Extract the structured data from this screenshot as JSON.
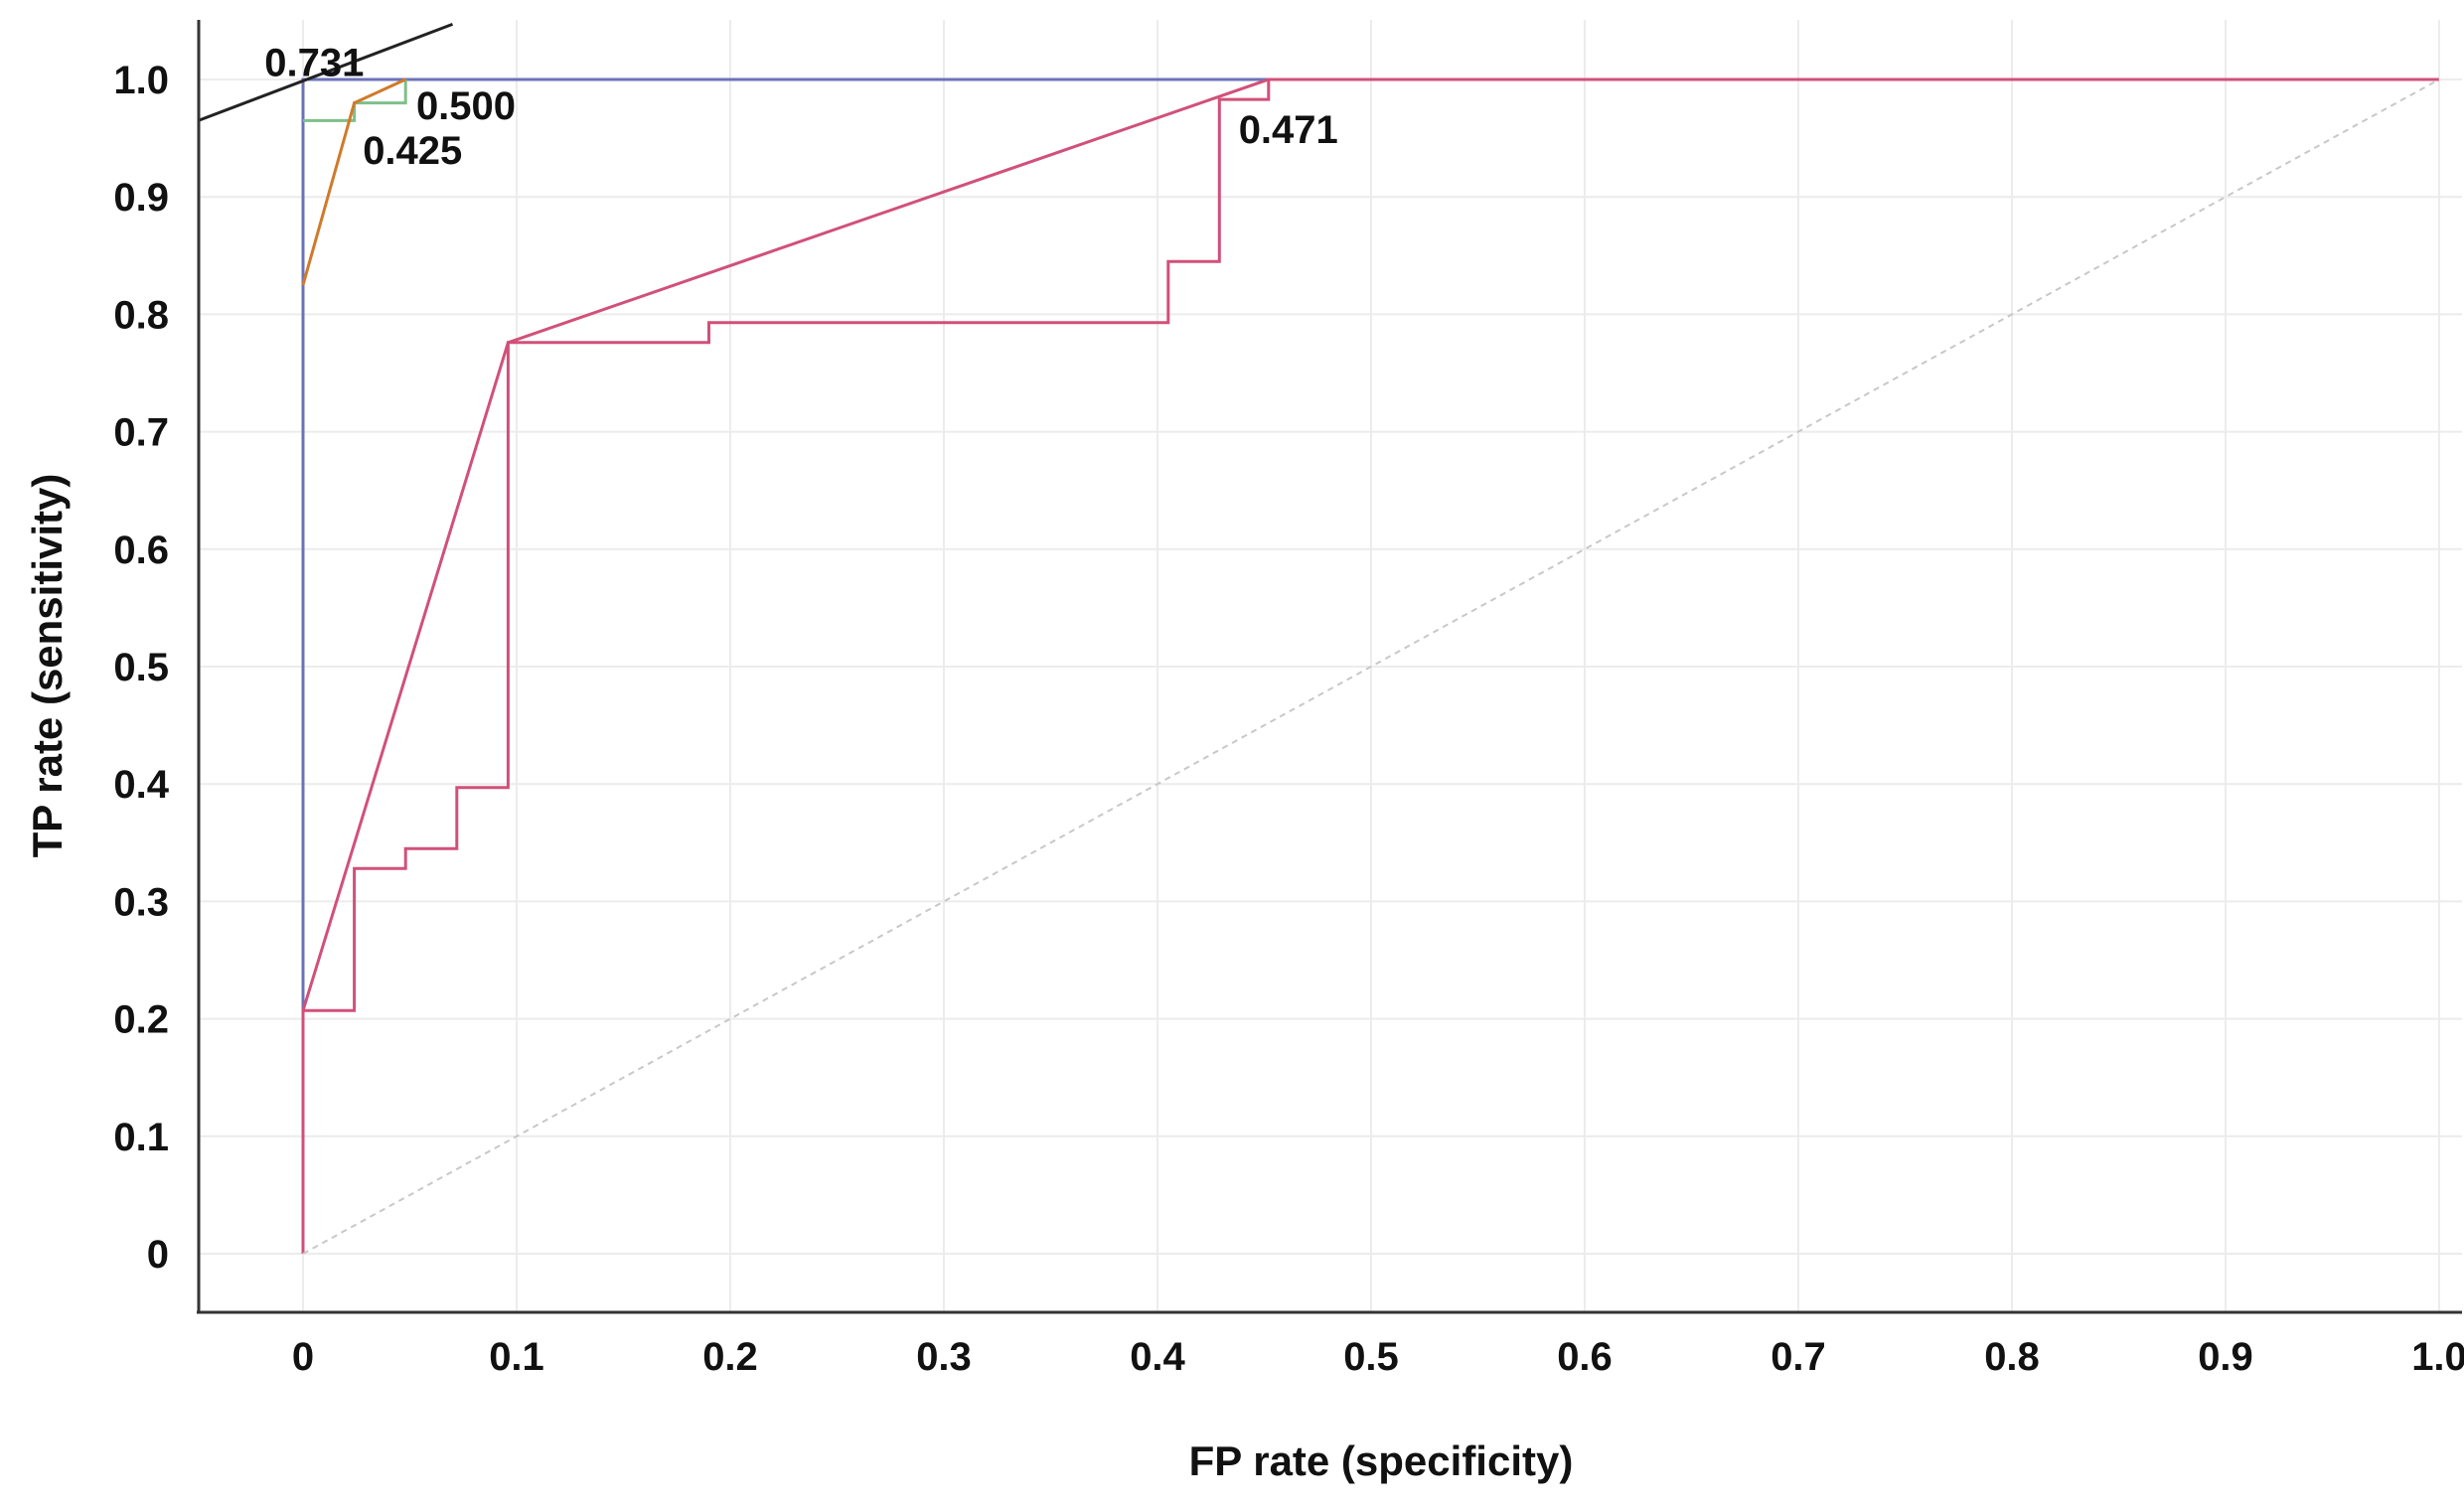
{
  "chart_data": {
    "type": "line",
    "xlabel": "FP rate (specificity)",
    "ylabel": "TP rate (sensitivity)",
    "xlim": [
      -0.05,
      1.01
    ],
    "ylim": [
      -0.05,
      1.05
    ],
    "xticks": [
      0,
      0.1,
      0.2,
      0.3,
      0.4,
      0.5,
      0.6,
      0.7,
      0.8,
      0.9,
      1.0
    ],
    "xtick_labels": [
      "0",
      "0.1",
      "0.2",
      "0.3",
      "0.4",
      "0.5",
      "0.6",
      "0.7",
      "0.8",
      "0.9",
      "1.0"
    ],
    "yticks": [
      0,
      0.1,
      0.2,
      0.3,
      0.4,
      0.5,
      0.6,
      0.7,
      0.8,
      0.9,
      1.0
    ],
    "ytick_labels": [
      "0",
      "0.1",
      "0.2",
      "0.3",
      "0.4",
      "0.5",
      "0.6",
      "0.7",
      "0.8",
      "0.9",
      "1.0"
    ],
    "grid": true,
    "series": [
      {
        "color": "#6b73b8",
        "points": [
          [
            0,
            0
          ],
          [
            0,
            1.0
          ],
          [
            1.0,
            1.0
          ]
        ]
      },
      {
        "color": "#7fbf8a",
        "points": [
          [
            0,
            0.965
          ],
          [
            0.024,
            0.965
          ],
          [
            0.024,
            0.98
          ],
          [
            0.048,
            0.98
          ],
          [
            0.048,
            1.0
          ]
        ]
      },
      {
        "color": "#d07a2a",
        "points": [
          [
            0,
            0.825
          ],
          [
            0.024,
            0.98
          ],
          [
            0.048,
            1.0
          ]
        ]
      },
      {
        "color": "#d1507a",
        "points": [
          [
            0,
            0
          ],
          [
            0,
            0.207
          ],
          [
            0.024,
            0.207
          ],
          [
            0.024,
            0.328
          ],
          [
            0.048,
            0.328
          ],
          [
            0.048,
            0.345
          ],
          [
            0.072,
            0.345
          ],
          [
            0.072,
            0.397
          ],
          [
            0.096,
            0.397
          ],
          [
            0.096,
            0.776
          ],
          [
            0.19,
            0.776
          ],
          [
            0.19,
            0.793
          ],
          [
            0.405,
            0.793
          ],
          [
            0.405,
            0.845
          ],
          [
            0.429,
            0.845
          ],
          [
            0.429,
            0.983
          ],
          [
            0.452,
            0.983
          ],
          [
            0.452,
            1.0
          ],
          [
            1.0,
            1.0
          ]
        ]
      },
      {
        "color": "#d1507a",
        "points": [
          [
            0,
            0.207
          ],
          [
            0.096,
            0.776
          ],
          [
            0.452,
            1.0
          ],
          [
            1.0,
            1.0
          ]
        ]
      },
      {
        "color": "#c8c8c8",
        "dashed": true,
        "points": [
          [
            0,
            0
          ],
          [
            1.0,
            1.0
          ]
        ]
      },
      {
        "color": "#222222",
        "points": [
          [
            -0.049,
            0.965
          ],
          [
            0.07,
            1.047
          ]
        ]
      }
    ],
    "annotations": [
      {
        "text": "0.731",
        "x": -0.018,
        "y": 1.003
      },
      {
        "text": "0.500",
        "x": 0.053,
        "y": 0.966
      },
      {
        "text": "0.425",
        "x": 0.028,
        "y": 0.928
      },
      {
        "text": "0.471",
        "x": 0.438,
        "y": 0.946
      }
    ]
  }
}
